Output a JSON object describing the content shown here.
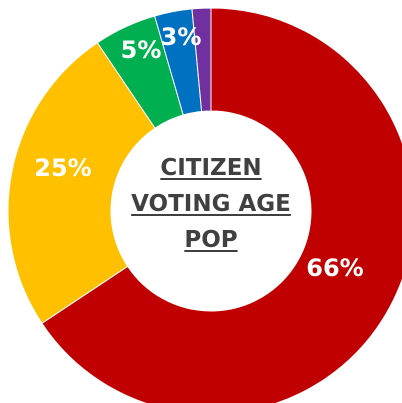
{
  "chart_data": {
    "type": "pie",
    "title_lines": [
      "CITIZEN",
      "VOTING AGE",
      "POP"
    ],
    "slices": [
      {
        "label": "66%",
        "value": 66,
        "color": "#C00000"
      },
      {
        "label": "25%",
        "value": 25,
        "color": "#FFC000"
      },
      {
        "label": "5%",
        "value": 5,
        "color": "#00B050"
      },
      {
        "label": "3%",
        "value": 3,
        "color": "#0070C0"
      },
      {
        "label": "",
        "value": 1.5,
        "color": "#7030A0"
      }
    ],
    "hole": true,
    "legend": "none"
  }
}
